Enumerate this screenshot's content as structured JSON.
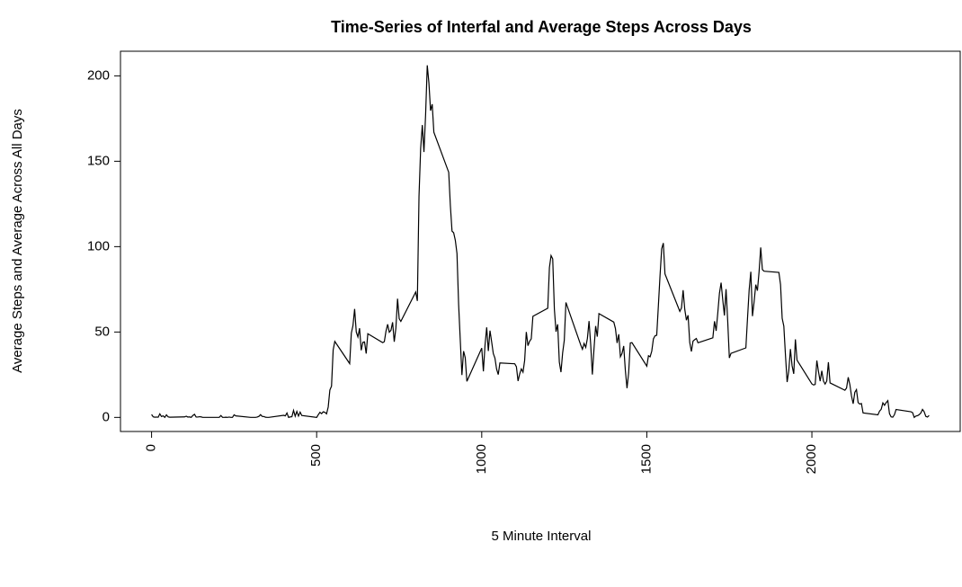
{
  "chart_data": {
    "type": "line",
    "title": "Time-Series of Interfal and Average Steps Across Days",
    "x_label": "5 Minute Interval",
    "y_label": "Average Steps and Average Across All Days",
    "color": "#000000",
    "xlim": [
      -94.2,
      2449.2
    ],
    "ylim": [
      -8.25,
      214.42
    ],
    "xticks": [
      0,
      500,
      1000,
      1500,
      2000
    ],
    "yticks": [
      0,
      50,
      100,
      150,
      200
    ],
    "x": [
      0,
      5,
      10,
      15,
      20,
      25,
      30,
      35,
      40,
      45,
      50,
      55,
      100,
      105,
      110,
      115,
      120,
      125,
      130,
      135,
      140,
      145,
      150,
      155,
      200,
      205,
      210,
      215,
      220,
      225,
      230,
      235,
      240,
      245,
      250,
      255,
      300,
      305,
      310,
      315,
      320,
      325,
      330,
      335,
      340,
      345,
      350,
      355,
      400,
      405,
      410,
      415,
      420,
      425,
      430,
      435,
      440,
      445,
      450,
      455,
      500,
      505,
      510,
      515,
      520,
      525,
      530,
      535,
      540,
      545,
      550,
      555,
      600,
      605,
      610,
      615,
      620,
      625,
      630,
      635,
      640,
      645,
      650,
      655,
      700,
      705,
      710,
      715,
      720,
      725,
      730,
      735,
      740,
      745,
      750,
      755,
      800,
      805,
      810,
      815,
      820,
      825,
      830,
      835,
      840,
      845,
      850,
      855,
      900,
      905,
      910,
      915,
      920,
      925,
      930,
      935,
      940,
      945,
      950,
      955,
      1000,
      1005,
      1010,
      1015,
      1020,
      1025,
      1030,
      1035,
      1040,
      1045,
      1050,
      1055,
      1100,
      1105,
      1110,
      1115,
      1120,
      1125,
      1130,
      1135,
      1140,
      1145,
      1150,
      1155,
      1200,
      1205,
      1210,
      1215,
      1220,
      1225,
      1230,
      1235,
      1240,
      1245,
      1250,
      1255,
      1300,
      1305,
      1310,
      1315,
      1320,
      1325,
      1330,
      1335,
      1340,
      1345,
      1350,
      1355,
      1400,
      1405,
      1410,
      1415,
      1420,
      1425,
      1430,
      1435,
      1440,
      1445,
      1450,
      1455,
      1500,
      1505,
      1510,
      1515,
      1520,
      1525,
      1530,
      1535,
      1540,
      1545,
      1550,
      1555,
      1600,
      1605,
      1610,
      1615,
      1620,
      1625,
      1630,
      1635,
      1640,
      1645,
      1650,
      1655,
      1700,
      1705,
      1710,
      1715,
      1720,
      1725,
      1730,
      1735,
      1740,
      1745,
      1750,
      1755,
      1800,
      1805,
      1810,
      1815,
      1820,
      1825,
      1830,
      1835,
      1840,
      1845,
      1850,
      1855,
      1900,
      1905,
      1910,
      1915,
      1920,
      1925,
      1930,
      1935,
      1940,
      1945,
      1950,
      1955,
      2000,
      2005,
      2010,
      2015,
      2020,
      2025,
      2030,
      2035,
      2040,
      2045,
      2050,
      2055,
      2100,
      2105,
      2110,
      2115,
      2120,
      2125,
      2130,
      2135,
      2140,
      2145,
      2150,
      2155,
      2200,
      2205,
      2210,
      2215,
      2220,
      2225,
      2230,
      2235,
      2240,
      2245,
      2250,
      2255,
      2300,
      2305,
      2310,
      2315,
      2320,
      2325,
      2330,
      2335,
      2340,
      2345,
      2350,
      2355
    ],
    "values": [
      1.7,
      0.3,
      0.1,
      0.2,
      0.1,
      2.1,
      0.5,
      0.9,
      0,
      1.5,
      0.3,
      0.1,
      0.3,
      0.7,
      0.2,
      0.3,
      0,
      1.1,
      1.8,
      0.2,
      0.2,
      0.4,
      0.3,
      0,
      0,
      0,
      1.1,
      0,
      0,
      0.1,
      0,
      0.2,
      0,
      0,
      1.5,
      0.9,
      0,
      0,
      0,
      0,
      0.2,
      0.6,
      1.6,
      0.6,
      0.5,
      0.1,
      0,
      0,
      1.2,
      0.9,
      2.6,
      0,
      0.3,
      0.4,
      4.1,
      0.7,
      3.5,
      0.8,
      3.1,
      1.1,
      0,
      1.6,
      3,
      2.2,
      3.3,
      3,
      2.1,
      6.1,
      16,
      18.3,
      39.5,
      44.5,
      31.5,
      49.3,
      53.8,
      63.5,
      50,
      47.1,
      52.2,
      39.3,
      44,
      44.2,
      37.4,
      49,
      43.8,
      44.4,
      50.5,
      54.5,
      49.9,
      51,
      55.7,
      44.3,
      52.3,
      69.5,
      57.8,
      56.2,
      73.4,
      68.2,
      129.4,
      157.5,
      171.2,
      155.4,
      177.3,
      206.2,
      195.9,
      179.6,
      183.4,
      167,
      143.5,
      124,
      109.1,
      108.1,
      103.7,
      96,
      66.2,
      45.2,
      24.8,
      38.8,
      35,
      21.1,
      40.6,
      27,
      42.4,
      52.7,
      38.9,
      50.8,
      44.3,
      37.4,
      34.7,
      28.3,
      25.1,
      31.9,
      31.4,
      29.7,
      21.3,
      25.5,
      28.4,
      26.5,
      33.4,
      50,
      42,
      44.6,
      46,
      59.2,
      63.9,
      87.7,
      94.8,
      92.8,
      63.4,
      50.2,
      54.5,
      32.4,
      26.5,
      37.7,
      45.1,
      67.3,
      42.3,
      39.9,
      43.3,
      41,
      46.2,
      56.4,
      42.8,
      25.1,
      40,
      53.5,
      47.3,
      60.8,
      55.8,
      52,
      43.6,
      48.7,
      35.5,
      37.5,
      41.8,
      27.5,
      17.1,
      26.1,
      43.6,
      43.8,
      30,
      36.1,
      35.5,
      38.8,
      46,
      47.8,
      48.1,
      65.3,
      82.9,
      98.7,
      102.1,
      84,
      62.1,
      64.1,
      74.5,
      63.2,
      56.9,
      59.8,
      43.9,
      38.6,
      44.7,
      45.5,
      46.2,
      43.7,
      46.6,
      56.3,
      50.7,
      61.2,
      72.7,
      78.9,
      68.9,
      59.7,
      75.1,
      56.5,
      34.8,
      37.5,
      40.7,
      58,
      74.7,
      85.3,
      59.3,
      67.8,
      77.7,
      74.2,
      85.3,
      99.5,
      86.6,
      85.6,
      84.9,
      77.8,
      58,
      53.4,
      36.3,
      20.7,
      27.4,
      40,
      30.2,
      25.5,
      45.7,
      33.5,
      19.6,
      19,
      19.3,
      33.3,
      26.8,
      21.2,
      27.3,
      21.3,
      19.5,
      21.3,
      32.3,
      20.2,
      15.9,
      17.2,
      23.5,
      19.2,
      12.5,
      8,
      14.7,
      16.3,
      8.7,
      7.8,
      8.1,
      2.6,
      1.5,
      3.7,
      4.8,
      8.5,
      7.1,
      8.7,
      9.8,
      2.2,
      0.3,
      0.1,
      1.6,
      4.6,
      3.3,
      2.8,
      0,
      0.8,
      1,
      1.6,
      2.6,
      4.7,
      3.3,
      0.6,
      0.2,
      1.1
    ]
  }
}
